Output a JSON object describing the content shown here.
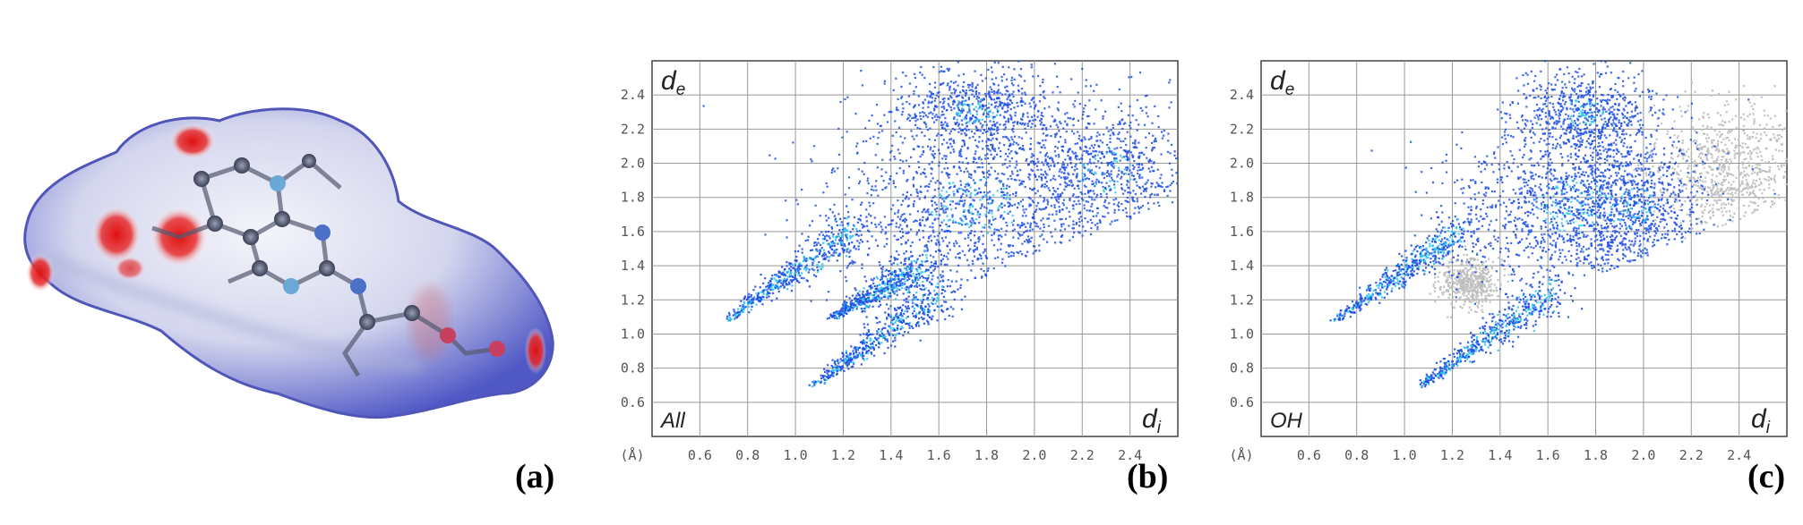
{
  "panel_labels": [
    "(a)",
    "(b)",
    "(c)"
  ],
  "colors": {
    "fingerprint": "#1d4fe6",
    "highlight": "#27c9f0",
    "background_points": "#bdbdbd",
    "surface_red": "#e01818",
    "surface_blue": "#4a57c8"
  },
  "chart_data": [
    {
      "type": "scatter",
      "panel": "(b)",
      "corner_label": "All",
      "x_var": "d",
      "x_sub": "i",
      "y_var": "d",
      "y_sub": "e",
      "unit_label": "(Å)",
      "xlim": [
        0.4,
        2.6
      ],
      "ylim": [
        0.4,
        2.6
      ],
      "x_ticks": [
        "0.6",
        "0.8",
        "1.0",
        "1.2",
        "1.4",
        "1.6",
        "1.8",
        "2.0",
        "2.2",
        "2.4"
      ],
      "y_ticks": [
        "0.6",
        "0.8",
        "1.0",
        "1.2",
        "1.4",
        "1.6",
        "1.8",
        "2.0",
        "2.2",
        "2.4"
      ],
      "grid": true,
      "series": [
        {
          "role": "highlighted",
          "spikes": [
            {
              "tip": [
                0.7,
                1.07
              ],
              "base": [
                1.25,
                1.62
              ]
            },
            {
              "tip": [
                1.07,
                0.7
              ],
              "base": [
                1.62,
                1.25
              ]
            },
            {
              "tip": [
                1.15,
                1.1
              ],
              "base": [
                1.55,
                1.4
              ]
            }
          ],
          "clouds": [
            {
              "center": [
                1.75,
                1.75
              ],
              "spread": [
                0.42,
                0.38
              ],
              "weight": 1.0
            },
            {
              "center": [
                2.3,
                1.95
              ],
              "spread": [
                0.25,
                0.3
              ],
              "weight": 0.55
            },
            {
              "center": [
                1.75,
                2.3
              ],
              "spread": [
                0.25,
                0.18
              ],
              "weight": 0.5
            }
          ]
        }
      ]
    },
    {
      "type": "scatter",
      "panel": "(c)",
      "corner_label": "OH",
      "x_var": "d",
      "x_sub": "i",
      "y_var": "d",
      "y_sub": "e",
      "unit_label": "(Å)",
      "xlim": [
        0.4,
        2.6
      ],
      "ylim": [
        0.4,
        2.6
      ],
      "x_ticks": [
        "0.6",
        "0.8",
        "1.0",
        "1.2",
        "1.4",
        "1.6",
        "1.8",
        "2.0",
        "2.2",
        "2.4"
      ],
      "y_ticks": [
        "0.6",
        "0.8",
        "1.0",
        "1.2",
        "1.4",
        "1.6",
        "1.8",
        "2.0",
        "2.2",
        "2.4"
      ],
      "grid": true,
      "series": [
        {
          "role": "background",
          "clouds": [
            {
              "center": [
                1.27,
                1.3
              ],
              "spread": [
                0.09,
                0.1
              ],
              "weight": 0.35
            },
            {
              "center": [
                2.35,
                1.95
              ],
              "spread": [
                0.22,
                0.28
              ],
              "weight": 0.6
            }
          ]
        },
        {
          "role": "highlighted",
          "spikes": [
            {
              "tip": [
                0.7,
                1.07
              ],
              "base": [
                1.25,
                1.62
              ]
            },
            {
              "tip": [
                1.07,
                0.7
              ],
              "base": [
                1.62,
                1.25
              ]
            }
          ],
          "clouds": [
            {
              "center": [
                1.7,
                1.75
              ],
              "spread": [
                0.35,
                0.36
              ],
              "weight": 0.95
            },
            {
              "center": [
                1.95,
                1.75
              ],
              "spread": [
                0.22,
                0.3
              ],
              "weight": 0.45
            },
            {
              "center": [
                1.75,
                2.3
              ],
              "spread": [
                0.2,
                0.17
              ],
              "weight": 0.45
            }
          ]
        }
      ]
    }
  ]
}
